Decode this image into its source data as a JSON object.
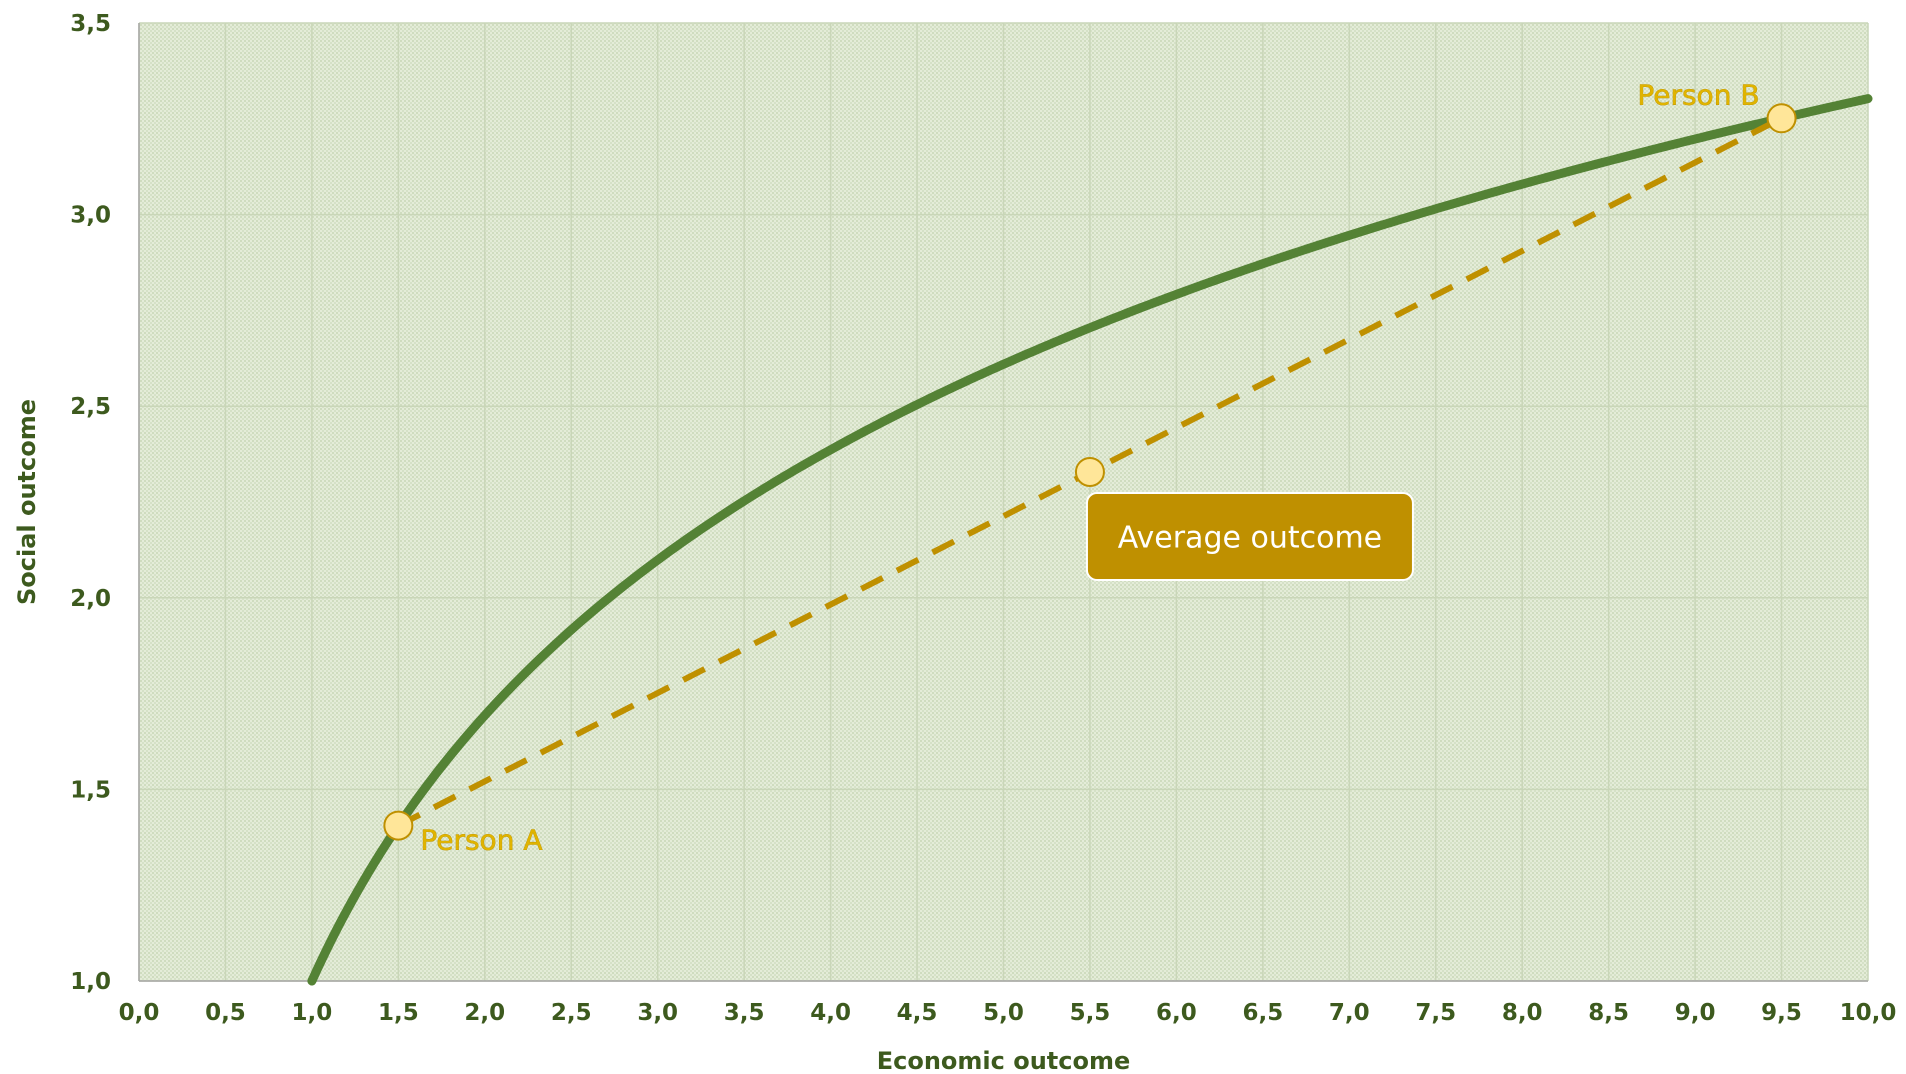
{
  "chart_data": {
    "type": "line",
    "xlabel": "Economic outcome",
    "ylabel": "Social outcome",
    "xlim": [
      0,
      10
    ],
    "ylim": [
      1,
      3.5
    ],
    "x_ticks": [
      "0,0",
      "0,5",
      "1,0",
      "1,5",
      "2,0",
      "2,5",
      "3,0",
      "3,5",
      "4,0",
      "4,5",
      "5,0",
      "5,5",
      "6,0",
      "6,5",
      "7,0",
      "7,5",
      "8,0",
      "8,5",
      "9,0",
      "9,5",
      "10,0"
    ],
    "y_ticks": [
      "1,0",
      "1,5",
      "2,0",
      "2,5",
      "3,0",
      "3,5"
    ],
    "grid": true,
    "curve": {
      "x": [
        1.0,
        1.25,
        1.5,
        2.0,
        2.5,
        3.0,
        3.5,
        4.0,
        4.5,
        5.0,
        5.5,
        6.0,
        6.5,
        7.0,
        7.5,
        8.0,
        8.5,
        9.0,
        9.5,
        10.0
      ],
      "y": [
        1.0,
        1.2231,
        1.4055,
        1.6931,
        1.9163,
        2.0986,
        2.2528,
        2.3863,
        2.5041,
        2.6094,
        2.7047,
        2.7918,
        2.8718,
        2.9459,
        3.0149,
        3.0794,
        3.1401,
        3.1972,
        3.2513,
        3.3026
      ],
      "color": "#548235"
    },
    "chord": {
      "x": [
        1.5,
        9.5
      ],
      "y": [
        1.4055,
        3.2513
      ],
      "color": "#bf9000"
    },
    "points": [
      {
        "x": 1.5,
        "y": 1.4055,
        "label": "Person A"
      },
      {
        "x": 9.5,
        "y": 3.2513,
        "label": "Person B"
      },
      {
        "x": 5.5,
        "y": 2.3284,
        "label": ""
      }
    ],
    "annotation": {
      "text": "Average outcome",
      "color": "#bf9000"
    }
  }
}
